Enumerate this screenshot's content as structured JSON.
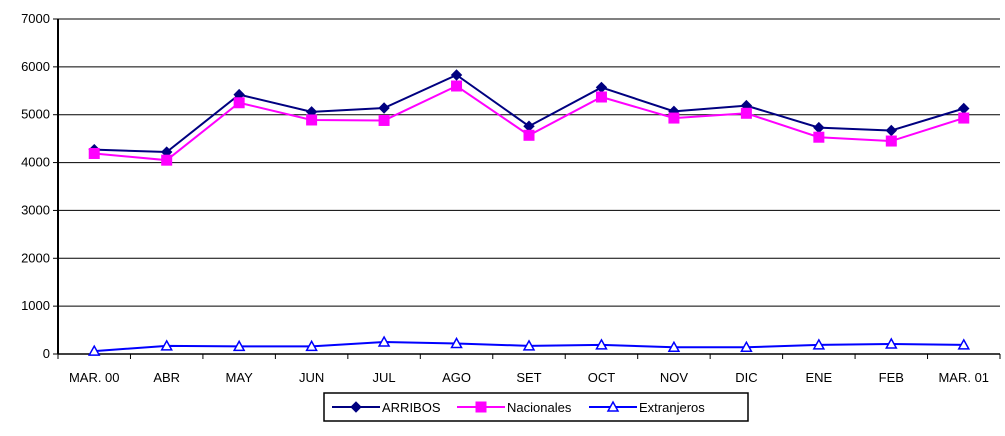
{
  "chart_data": {
    "type": "line",
    "title": "",
    "xlabel": "",
    "ylabel": "",
    "categories": [
      "MAR. 00",
      "ABR",
      "MAY",
      "JUN",
      "JUL",
      "AGO",
      "SET",
      "OCT",
      "NOV",
      "DIC",
      "ENE",
      "FEB",
      "MAR. 01"
    ],
    "ylim": [
      0,
      7000
    ],
    "yticks": [
      "0",
      "1000",
      "2000",
      "3000",
      "4000",
      "5000",
      "6000",
      "7000"
    ],
    "grid": true,
    "legend_position": "bottom",
    "series": [
      {
        "name": "ARRIBOS",
        "color": "#000080",
        "marker": "diamond",
        "values": [
          4270,
          4220,
          5420,
          5060,
          5140,
          5830,
          4760,
          5570,
          5070,
          5190,
          4730,
          4670,
          5130
        ]
      },
      {
        "name": "Nacionales",
        "color": "#FF00FF",
        "marker": "square",
        "values": [
          4190,
          4050,
          5250,
          4890,
          4880,
          5600,
          4570,
          5370,
          4930,
          5030,
          4530,
          4450,
          4930
        ]
      },
      {
        "name": "Extranjeros",
        "color": "#0000FF",
        "marker": "triangle",
        "values": [
          60,
          170,
          160,
          160,
          250,
          220,
          170,
          190,
          140,
          140,
          190,
          210,
          190
        ]
      }
    ]
  }
}
